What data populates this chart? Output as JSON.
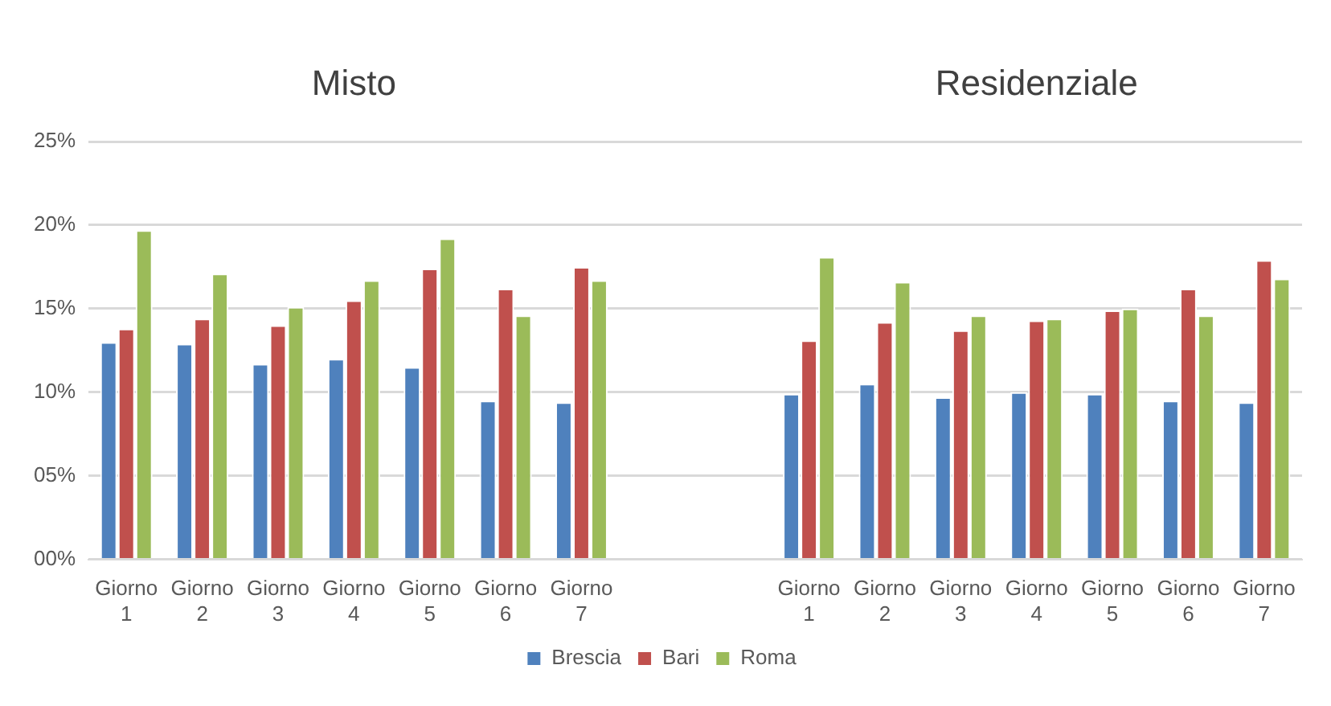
{
  "chart_data": {
    "type": "bar",
    "categories": [
      "Giorno 1",
      "Giorno 2",
      "Giorno 3",
      "Giorno 4",
      "Giorno 5",
      "Giorno 6",
      "Giorno 7",
      null,
      null,
      "Giorno 1",
      "Giorno 2",
      "Giorno 3",
      "Giorno 4",
      "Giorno 5",
      "Giorno 6",
      "Giorno 7"
    ],
    "series": [
      {
        "name": "Brescia",
        "color": "#4f81bd",
        "values": [
          13.0,
          12.9,
          11.7,
          12.0,
          11.5,
          9.5,
          9.4,
          null,
          null,
          9.9,
          10.5,
          9.7,
          10.0,
          9.9,
          9.5,
          9.4
        ]
      },
      {
        "name": "Bari",
        "color": "#c0504d",
        "values": [
          13.8,
          14.4,
          14.0,
          15.5,
          17.4,
          16.2,
          17.5,
          null,
          null,
          13.1,
          14.2,
          13.7,
          14.3,
          14.9,
          16.2,
          17.9
        ]
      },
      {
        "name": "Roma",
        "color": "#9bbb59",
        "values": [
          19.7,
          17.1,
          15.1,
          16.7,
          19.2,
          14.6,
          16.7,
          null,
          null,
          18.1,
          16.6,
          14.6,
          14.4,
          15.0,
          14.6,
          16.8
        ]
      }
    ],
    "annotations": [
      "Misto",
      "Residenziale"
    ],
    "ylim": [
      0,
      25
    ],
    "yticks": [
      {
        "value": 0,
        "label": "00%"
      },
      {
        "value": 5,
        "label": "05%"
      },
      {
        "value": 10,
        "label": "10%"
      },
      {
        "value": 15,
        "label": "15%"
      },
      {
        "value": 20,
        "label": "20%"
      },
      {
        "value": 25,
        "label": "25%"
      }
    ],
    "grid": "y",
    "legend": "bottom"
  }
}
